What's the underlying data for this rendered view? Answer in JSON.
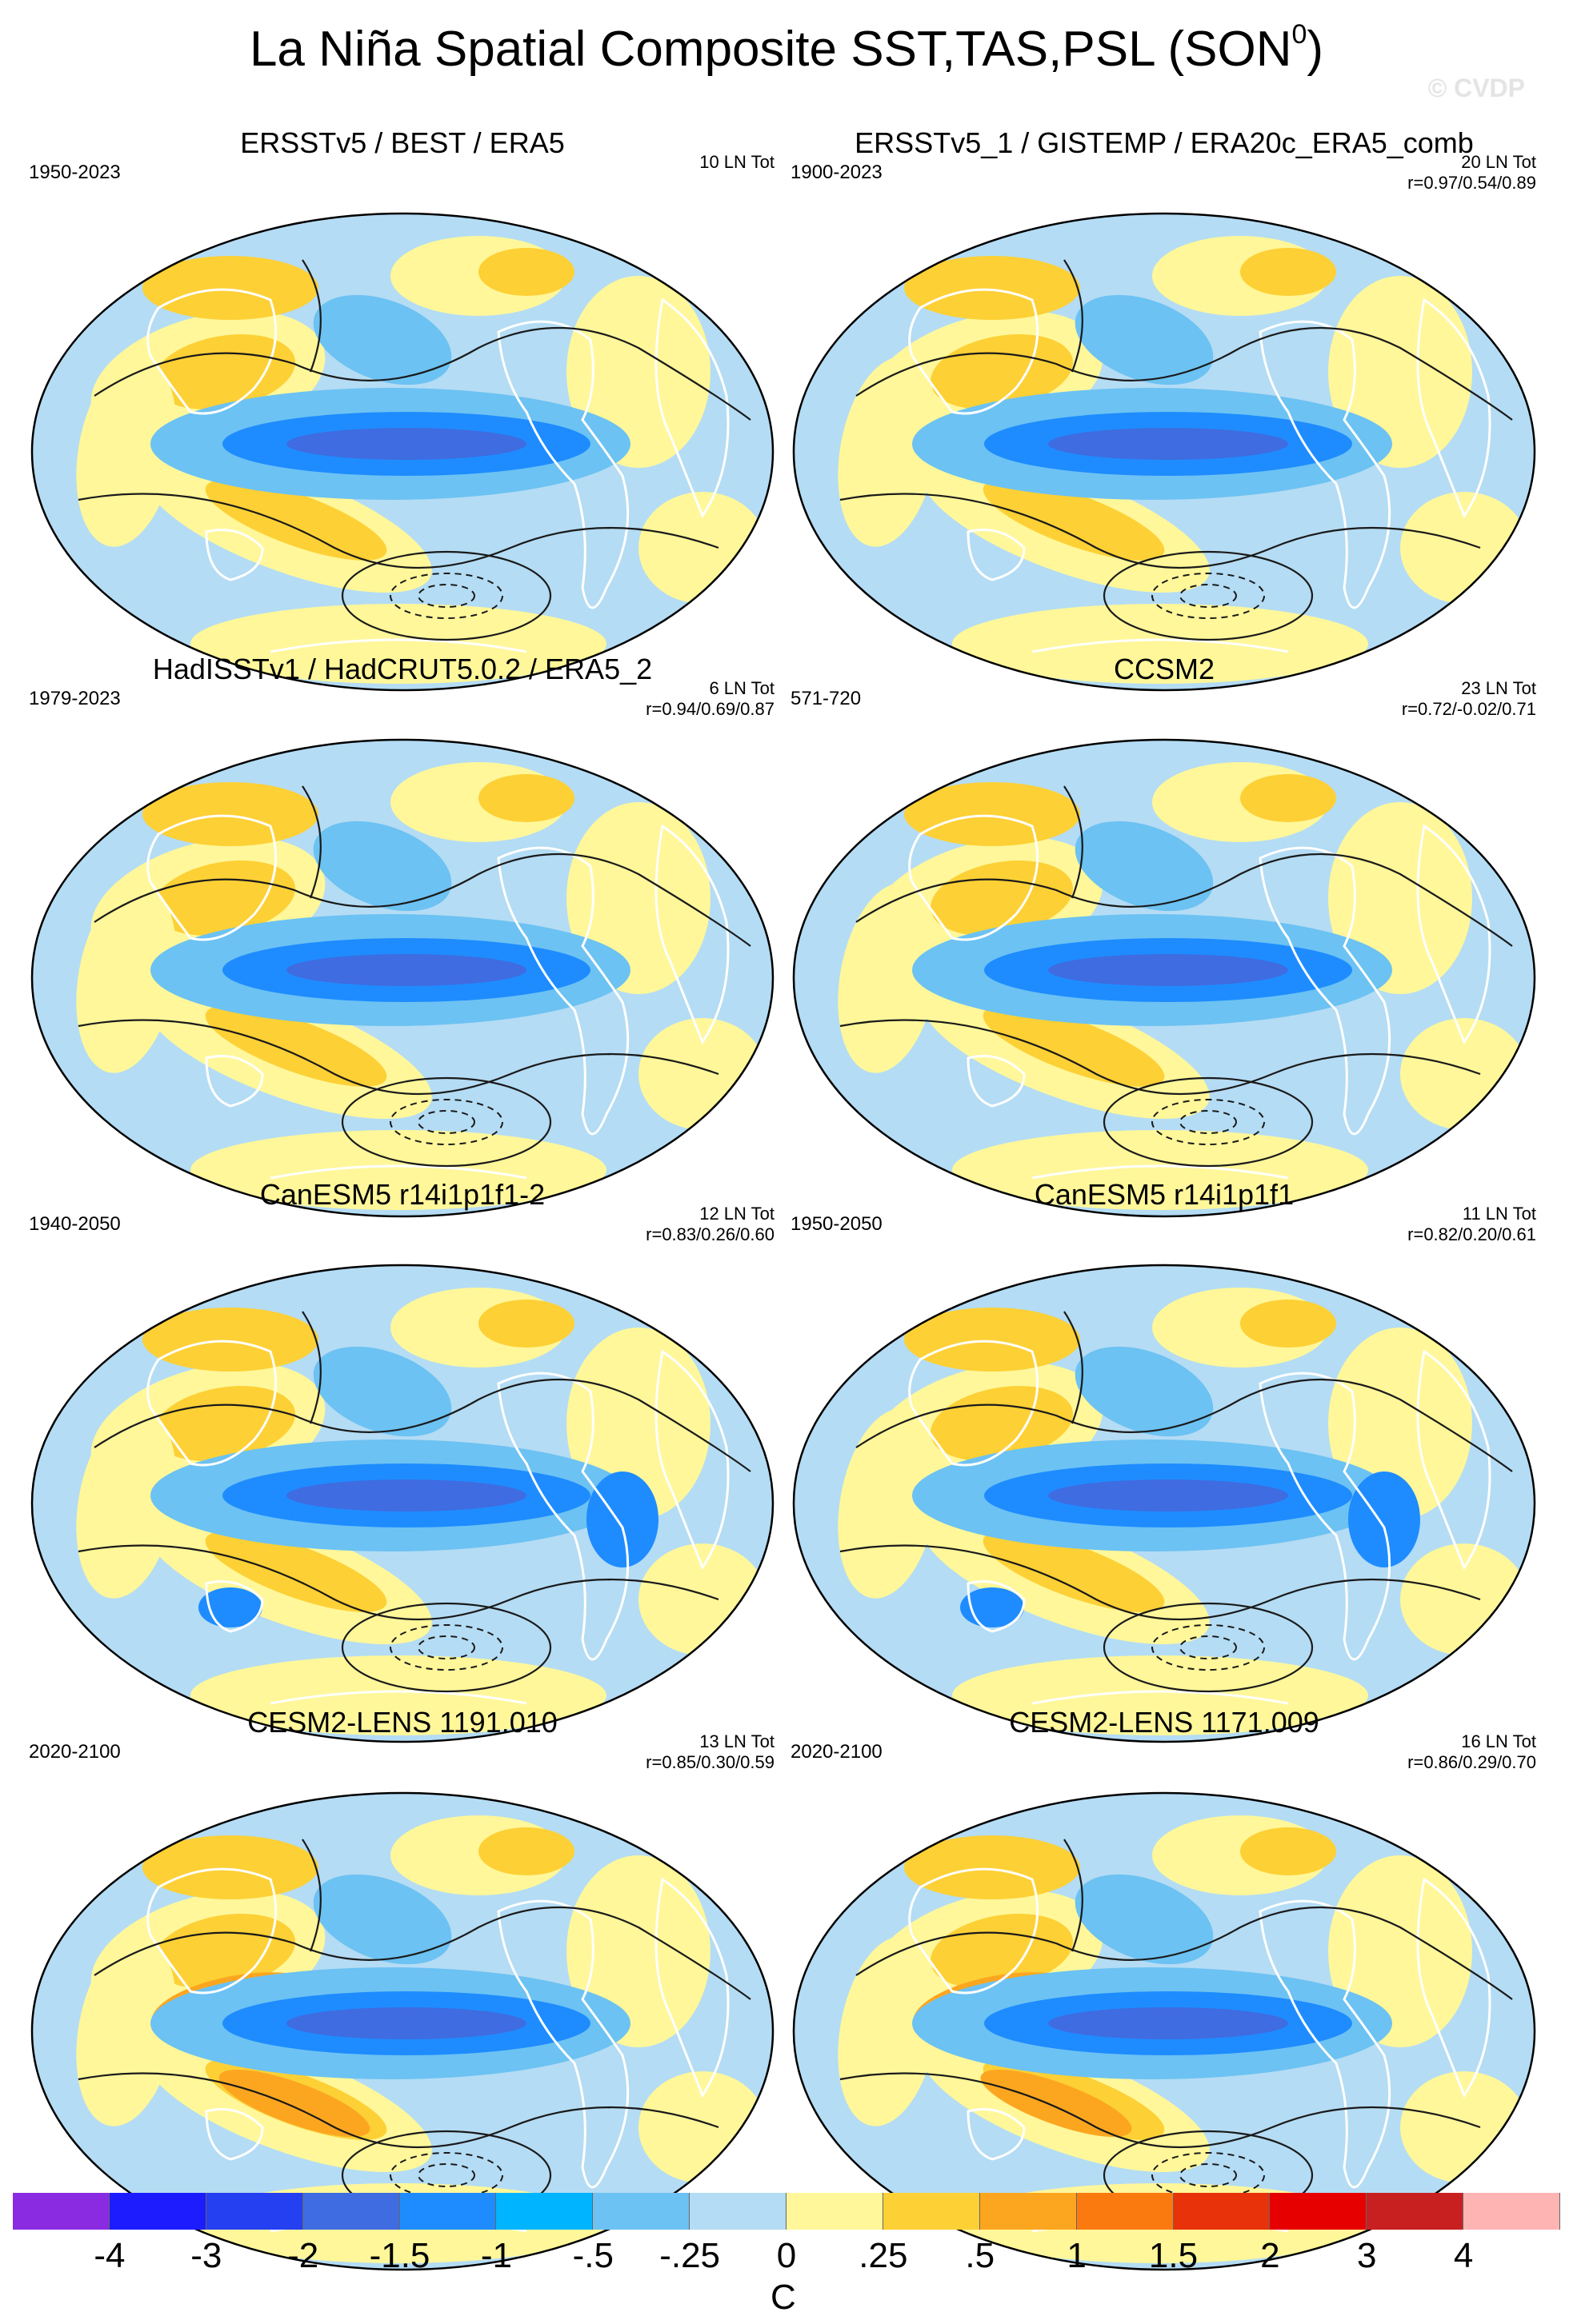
{
  "title": "La Niña Spatial Composite SST,TAS,PSL (SON",
  "title_superscript": "0",
  "title_close": ")",
  "copyright": "© CVDP",
  "panels": [
    {
      "title": "ERSSTv5 / BEST / ERA5",
      "years": "1950-2023",
      "count": "10 LN Tot",
      "r": ""
    },
    {
      "title": "ERSSTv5_1 / GISTEMP / ERA20c_ERA5_comb",
      "years": "1900-2023",
      "count": "20 LN Tot",
      "r": "r=0.97/0.54/0.89"
    },
    {
      "title": "HadISSTv1 / HadCRUT5.0.2 / ERA5_2",
      "years": "1979-2023",
      "count": "6 LN Tot",
      "r": "r=0.94/0.69/0.87"
    },
    {
      "title": "CCSM2",
      "years": "571-720",
      "count": "23 LN Tot",
      "r": "r=0.72/-0.02/0.71"
    },
    {
      "title": "CanESM5 r14i1p1f1-2",
      "years": "1940-2050",
      "count": "12 LN Tot",
      "r": "r=0.83/0.26/0.60"
    },
    {
      "title": "CanESM5 r14i1p1f1",
      "years": "1950-2050",
      "count": "11 LN Tot",
      "r": "r=0.82/0.20/0.61"
    },
    {
      "title": "CESM2-LENS 1191.010",
      "years": "2020-2100",
      "count": "13 LN Tot",
      "r": "r=0.85/0.30/0.59"
    },
    {
      "title": "CESM2-LENS 1171.009",
      "years": "2020-2100",
      "count": "16 LN Tot",
      "r": "r=0.86/0.29/0.70"
    }
  ],
  "colorbar": {
    "units": "C",
    "labels": [
      "-4",
      "-3",
      "-2",
      "-1.5",
      "-1",
      "-.5",
      "-.25",
      "0",
      ".25",
      ".5",
      "1",
      "1.5",
      "2",
      "3",
      "4"
    ],
    "colors": [
      "#8a2be2",
      "#1c1cff",
      "#2440f0",
      "#3f6ce0",
      "#1e8cff",
      "#00b4ff",
      "#6cc2f2",
      "#b4dcf4",
      "#fff79a",
      "#fdd035",
      "#fca620",
      "#fb7a10",
      "#e8320a",
      "#e60000",
      "#c82020",
      "#ffb4b4"
    ]
  },
  "map_palette": {
    "ocean_light": "#b4dcf4",
    "blue_mid": "#6cc2f2",
    "blue_strong": "#1e8cff",
    "blue_deep": "#3f6ce0",
    "yellow": "#fff79a",
    "orange_light": "#fdd035",
    "orange": "#fca620",
    "coast": "#ffffff",
    "contour": "#1a1a1a"
  }
}
